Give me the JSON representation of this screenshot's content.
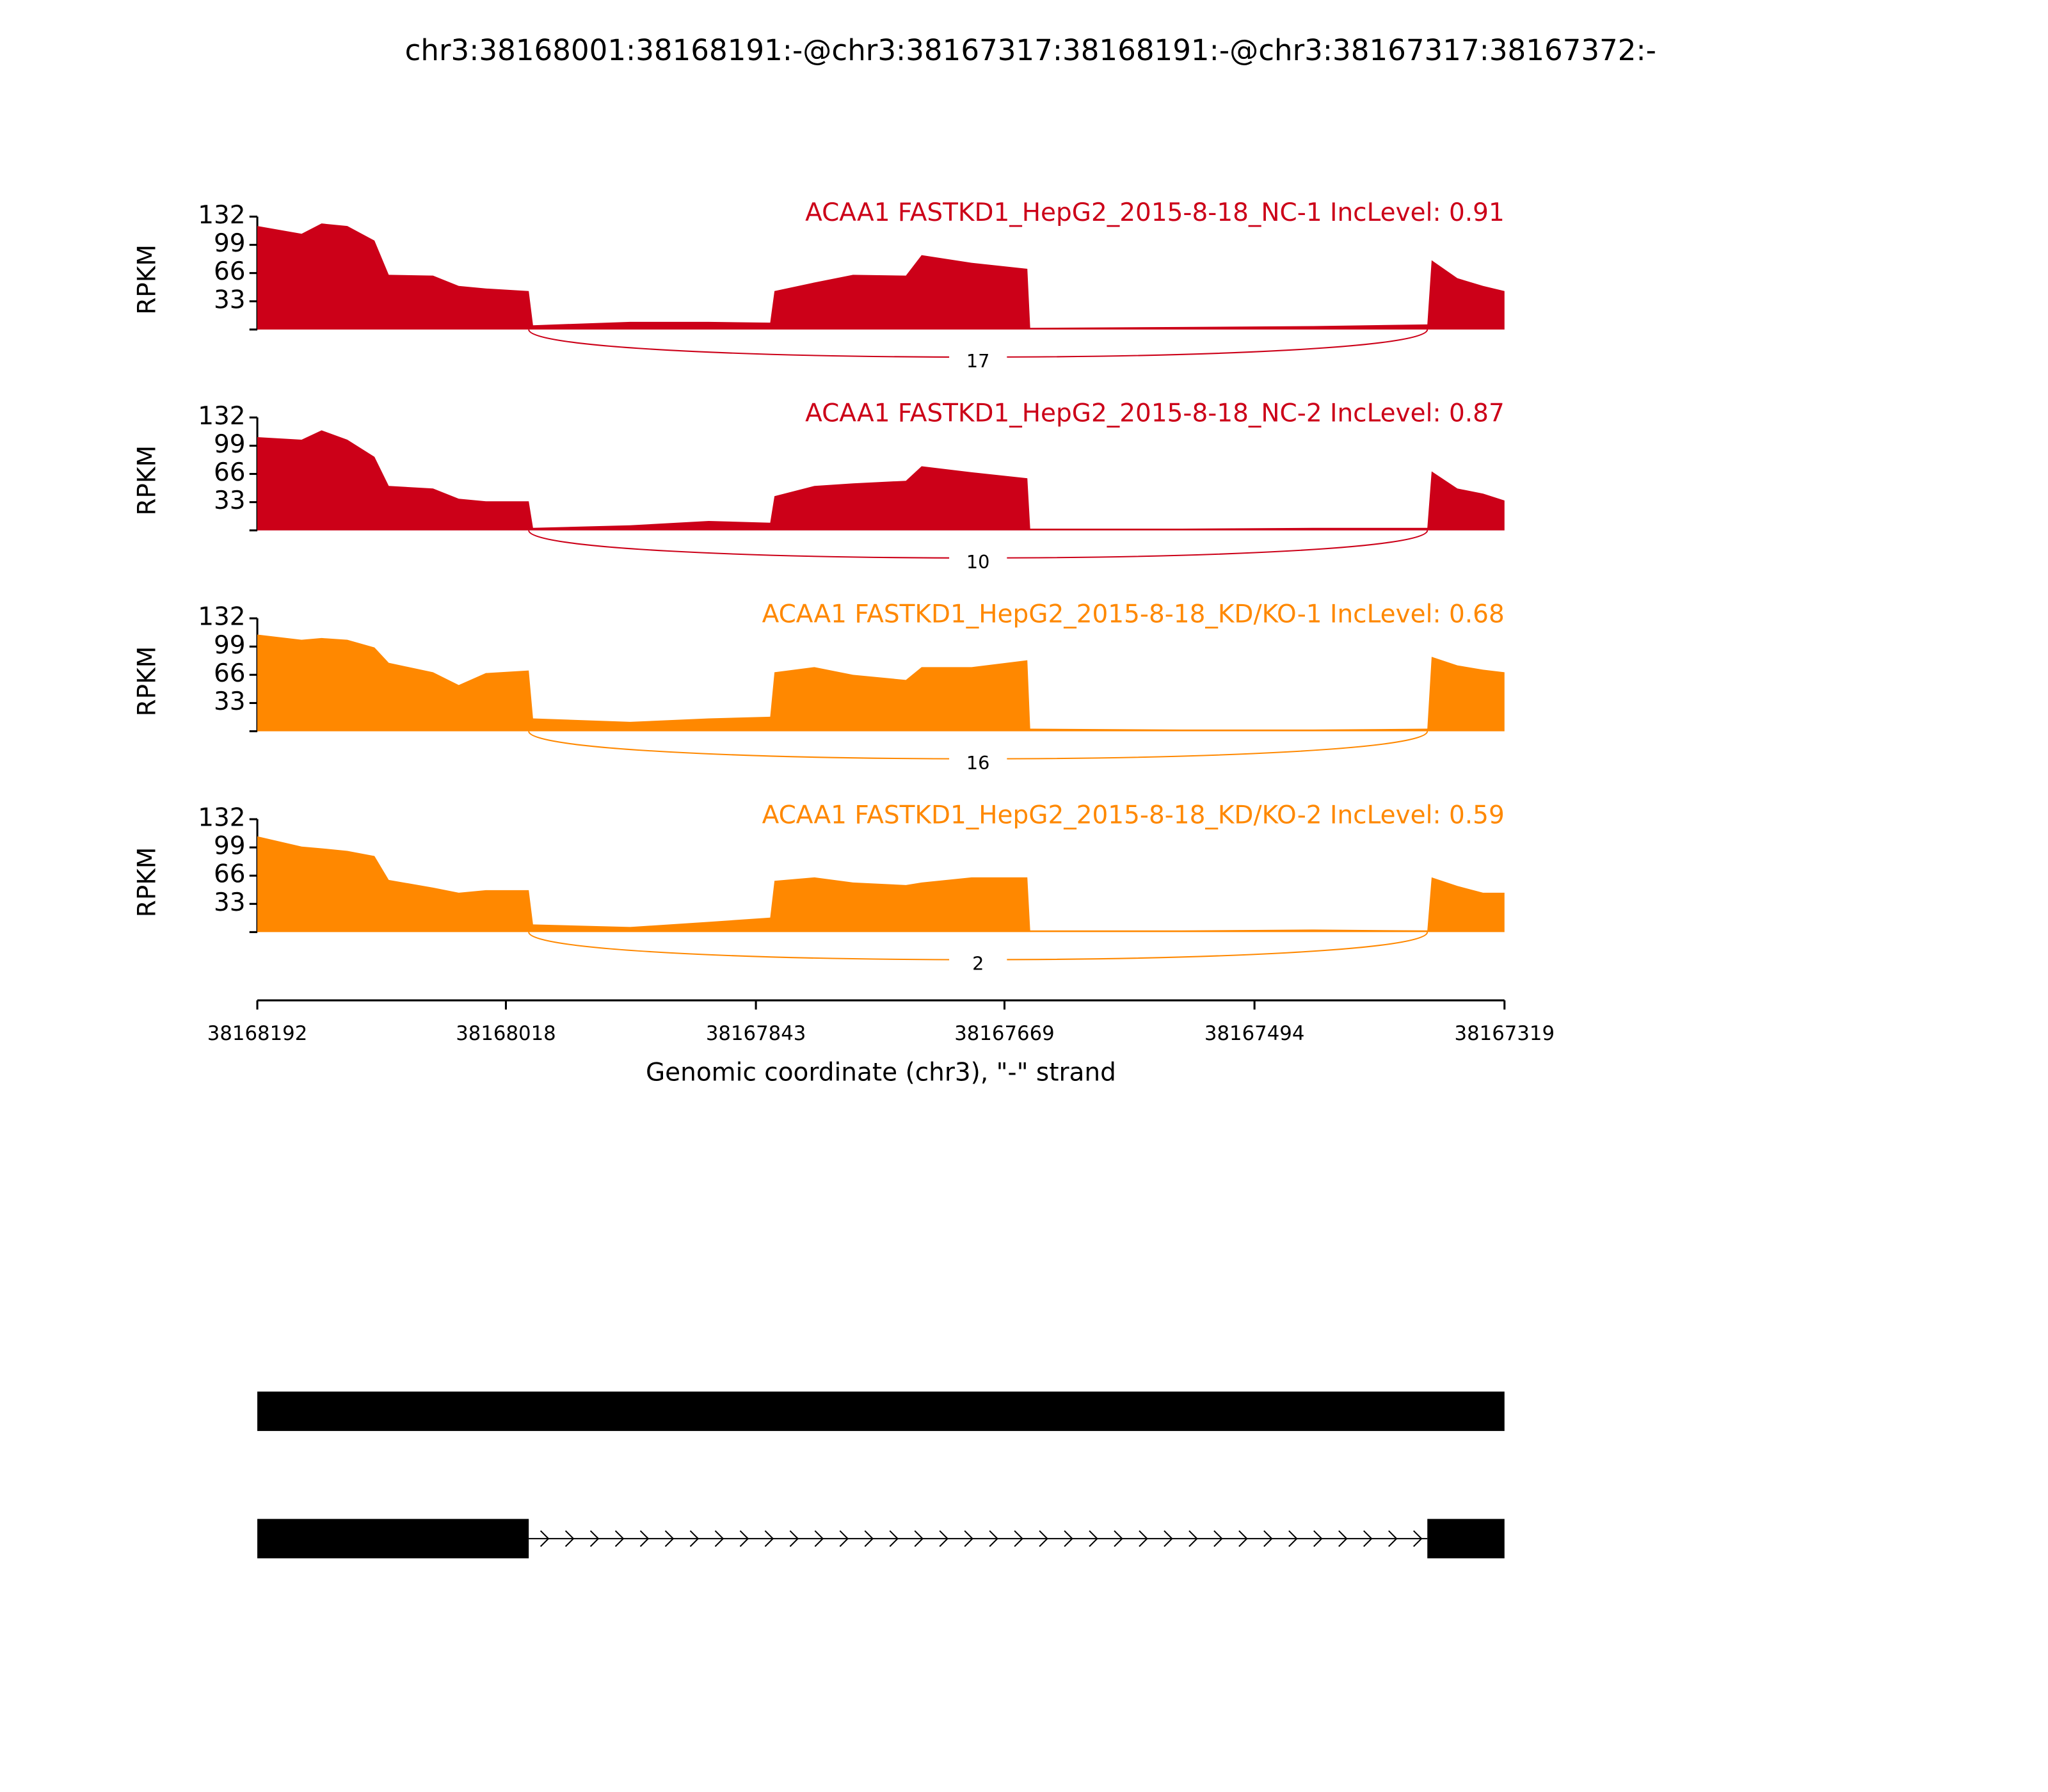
{
  "title": "chr3:38168001:38168191:-@chr3:38167317:38168191:-@chr3:38167317:38167372:-",
  "xlabel": "Genomic coordinate (chr3), \"-\" strand",
  "xlim": [
    38168192,
    38167319
  ],
  "xticks": [
    38168192,
    38168018,
    38167843,
    38167669,
    38167494,
    38167319
  ],
  "transcripts": [
    {
      "exons": [
        [
          38168192,
          38167319
        ]
      ]
    },
    {
      "exons": [
        [
          38168192,
          38168002
        ],
        [
          38167373,
          38167319
        ]
      ]
    }
  ],
  "chart_data": [
    {
      "type": "area",
      "title": "ACAA1 FASTKD1_HepG2_2015-8-18_NC-1 IncLevel: 0.91",
      "ylabel": "RPKM",
      "color": "#cc0018",
      "ylim": [
        0,
        132
      ],
      "yticks": [
        33,
        66,
        99,
        132
      ],
      "x": [
        38168192,
        38168161,
        38168147,
        38168129,
        38168110,
        38168100,
        38168069,
        38168051,
        38168032,
        38168002,
        38167999,
        38167931,
        38167876,
        38167833,
        38167830,
        38167802,
        38167775,
        38167738,
        38167727,
        38167692,
        38167653,
        38167651,
        38167545,
        38167453,
        38167373,
        38167370,
        38167352,
        38167334,
        38167319
      ],
      "values": [
        121,
        112,
        124,
        121,
        104,
        64,
        63,
        51,
        48,
        45,
        5,
        9,
        9,
        8,
        45,
        55,
        64,
        63,
        87,
        78,
        71,
        2,
        3,
        4,
        6,
        81,
        60,
        51,
        45
      ],
      "junctions": [
        {
          "start": 38168002,
          "end": 38167373,
          "count": 17
        }
      ]
    },
    {
      "type": "area",
      "title": "ACAA1 FASTKD1_HepG2_2015-8-18_NC-2 IncLevel: 0.87",
      "ylabel": "RPKM",
      "color": "#cc0018",
      "ylim": [
        0,
        132
      ],
      "yticks": [
        33,
        66,
        99,
        132
      ],
      "x": [
        38168192,
        38168161,
        38168147,
        38168129,
        38168110,
        38168100,
        38168069,
        38168051,
        38168032,
        38168002,
        38167999,
        38167931,
        38167876,
        38167833,
        38167830,
        38167802,
        38167775,
        38167738,
        38167727,
        38167692,
        38167653,
        38167651,
        38167545,
        38167453,
        38167373,
        38167370,
        38167352,
        38167334,
        38167319
      ],
      "values": [
        109,
        106,
        117,
        106,
        86,
        52,
        49,
        37,
        34,
        34,
        3,
        6,
        11,
        9,
        40,
        52,
        55,
        58,
        75,
        68,
        61,
        2,
        2,
        3,
        3,
        69,
        49,
        43,
        35
      ],
      "junctions": [
        {
          "start": 38168002,
          "end": 38167373,
          "count": 10
        }
      ]
    },
    {
      "type": "area",
      "title": "ACAA1 FASTKD1_HepG2_2015-8-18_KD/KO-1 IncLevel: 0.68",
      "ylabel": "RPKM",
      "color": "#ff8800",
      "ylim": [
        0,
        132
      ],
      "yticks": [
        33,
        66,
        99,
        132
      ],
      "x": [
        38168192,
        38168161,
        38168147,
        38168129,
        38168110,
        38168100,
        38168069,
        38168051,
        38168032,
        38168002,
        38167999,
        38167931,
        38167876,
        38167833,
        38167830,
        38167802,
        38167775,
        38167738,
        38167727,
        38167692,
        38167653,
        38167651,
        38167545,
        38167453,
        38167373,
        38167370,
        38167352,
        38167334,
        38167319
      ],
      "values": [
        113,
        107,
        109,
        107,
        98,
        80,
        69,
        54,
        68,
        71,
        15,
        11,
        15,
        17,
        69,
        75,
        66,
        60,
        75,
        75,
        83,
        3,
        2,
        2,
        3,
        87,
        77,
        72,
        69
      ],
      "junctions": [
        {
          "start": 38168002,
          "end": 38167373,
          "count": 16
        }
      ]
    },
    {
      "type": "area",
      "title": "ACAA1 FASTKD1_HepG2_2015-8-18_KD/KO-2 IncLevel: 0.59",
      "ylabel": "RPKM",
      "color": "#ff8800",
      "ylim": [
        0,
        132
      ],
      "yticks": [
        33,
        66,
        99,
        132
      ],
      "x": [
        38168192,
        38168161,
        38168147,
        38168129,
        38168110,
        38168100,
        38168069,
        38168051,
        38168032,
        38168002,
        38167999,
        38167931,
        38167876,
        38167833,
        38167830,
        38167802,
        38167775,
        38167738,
        38167727,
        38167692,
        38167653,
        38167651,
        38167545,
        38167453,
        38167373,
        38167370,
        38167352,
        38167334,
        38167319
      ],
      "values": [
        112,
        100,
        98,
        95,
        89,
        61,
        52,
        46,
        49,
        49,
        9,
        6,
        12,
        17,
        60,
        64,
        58,
        55,
        58,
        64,
        64,
        2,
        2,
        3,
        2,
        64,
        54,
        46,
        46
      ],
      "junctions": [
        {
          "start": 38168002,
          "end": 38167373,
          "count": 2
        }
      ]
    }
  ]
}
